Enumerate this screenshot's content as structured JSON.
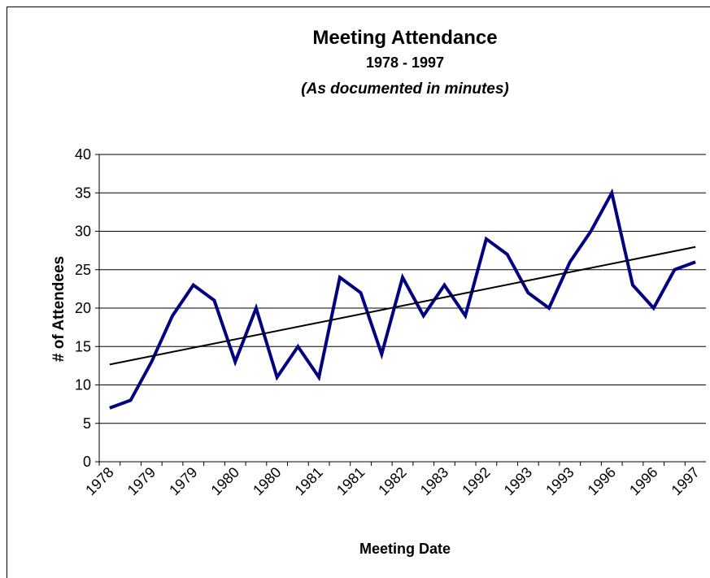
{
  "chart_data": {
    "type": "line",
    "title": "Meeting Attendance",
    "subtitle": "1978 - 1997",
    "note": "(As documented in minutes)",
    "xlabel": "Meeting Date",
    "ylabel": "# of Attendees",
    "categories": [
      "1978",
      null,
      "1979",
      null,
      "1979",
      null,
      "1980",
      null,
      "1980",
      null,
      "1981",
      null,
      "1981",
      null,
      "1982",
      null,
      "1983",
      null,
      "1992",
      null,
      "1993",
      null,
      "1993",
      null,
      "1996",
      null,
      "1996",
      null,
      "1997"
    ],
    "series": [
      {
        "name": "Attendees",
        "color": "#000080",
        "values": [
          7,
          8,
          13,
          19,
          23,
          21,
          13,
          20,
          11,
          15,
          11,
          24,
          22,
          14,
          24,
          19,
          23,
          19,
          29,
          27,
          22,
          20,
          26,
          30,
          35,
          23,
          20,
          25,
          26
        ]
      }
    ],
    "trendline": true,
    "ylim": [
      0,
      40
    ],
    "yticks": [
      0,
      5,
      10,
      15,
      20,
      25,
      30,
      35,
      40
    ],
    "grid": true
  }
}
